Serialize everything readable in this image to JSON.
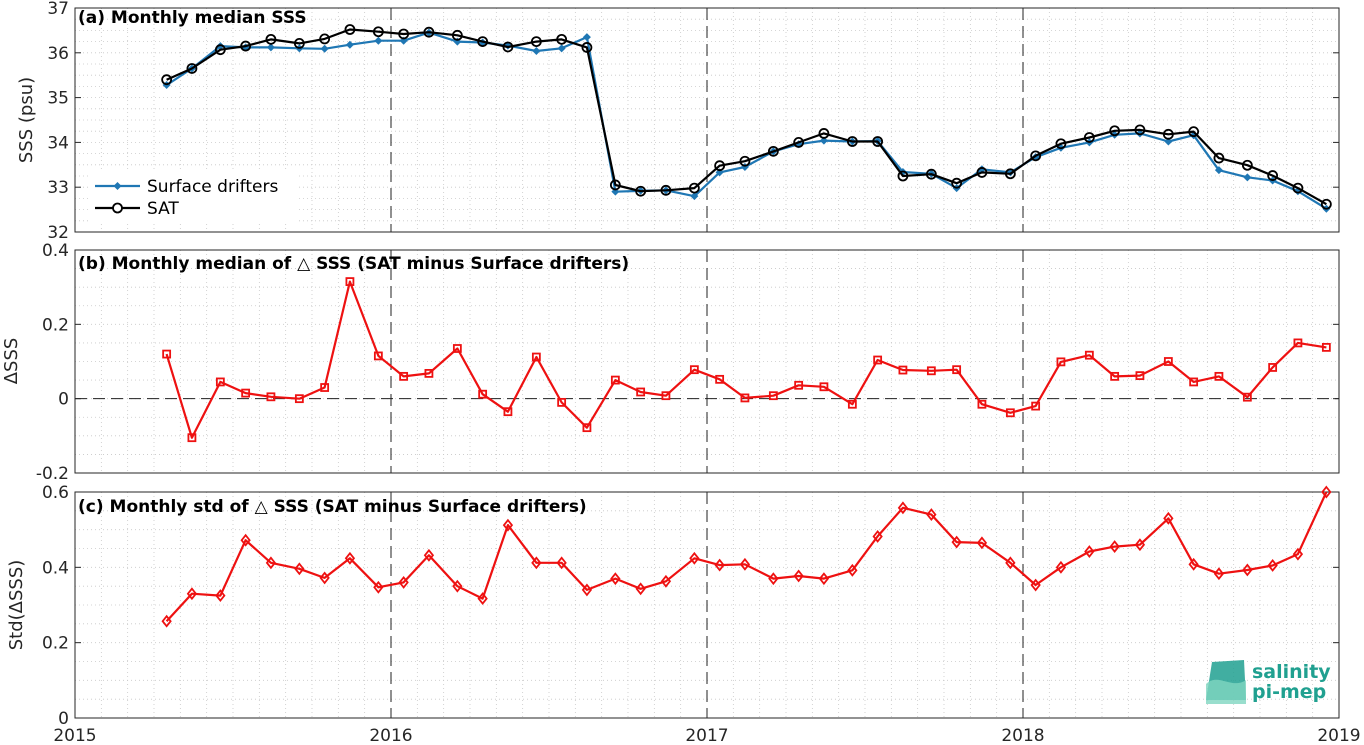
{
  "colors": {
    "drifters": "#1f77b4",
    "sat": "#000000",
    "delta": "#ee1111",
    "grid": "#c8c8c8",
    "logo": "#20a090"
  },
  "logo": {
    "line1": "salinity",
    "line2": "pi-mep"
  },
  "chart_data": [
    {
      "type": "line",
      "title": "(a) Monthly median SSS",
      "ylabel": "SSS (psu)",
      "ylim": [
        32,
        37
      ],
      "yticks": [
        "32",
        "33",
        "34",
        "35",
        "36",
        "37"
      ],
      "xticks": [
        "2015",
        "2016",
        "2017",
        "2018",
        "2019"
      ],
      "xlim": [
        2015.0,
        2019.0
      ],
      "grid": true,
      "legend_position": "bottom-left",
      "x": [
        2015.29,
        2015.37,
        2015.46,
        2015.54,
        2015.62,
        2015.71,
        2015.79,
        2015.87,
        2015.96,
        2016.04,
        2016.12,
        2016.21,
        2016.29,
        2016.37,
        2016.46,
        2016.54,
        2016.62,
        2016.71,
        2016.79,
        2016.87,
        2016.96,
        2017.04,
        2017.12,
        2017.21,
        2017.29,
        2017.37,
        2017.46,
        2017.54,
        2017.62,
        2017.71,
        2017.79,
        2017.87,
        2017.96,
        2018.04,
        2018.12,
        2018.21,
        2018.29,
        2018.37,
        2018.46,
        2018.54,
        2018.62,
        2018.71,
        2018.79,
        2018.87,
        2018.96
      ],
      "series": [
        {
          "name": "Surface drifters",
          "values": [
            35.28,
            35.65,
            36.15,
            36.12,
            36.12,
            36.1,
            36.09,
            36.18,
            36.27,
            36.27,
            36.45,
            36.25,
            36.23,
            36.16,
            36.04,
            36.1,
            36.35,
            32.9,
            32.92,
            32.93,
            32.8,
            33.33,
            33.45,
            33.8,
            33.96,
            34.04,
            34.02,
            34.03,
            33.34,
            33.3,
            32.98,
            33.4,
            33.33,
            33.67,
            33.88,
            34.0,
            34.17,
            34.2,
            34.02,
            34.16,
            33.38,
            33.22,
            33.15,
            32.91,
            32.52
          ]
        },
        {
          "name": "SAT",
          "values": [
            35.4,
            35.65,
            36.07,
            36.15,
            36.3,
            36.21,
            36.31,
            36.52,
            36.47,
            36.42,
            36.46,
            36.39,
            36.25,
            36.13,
            36.25,
            36.3,
            36.12,
            33.05,
            32.91,
            32.93,
            32.98,
            33.48,
            33.58,
            33.8,
            34.0,
            34.2,
            34.02,
            34.02,
            33.25,
            33.29,
            33.09,
            33.33,
            33.3,
            33.7,
            33.97,
            34.11,
            34.26,
            34.28,
            34.18,
            34.24,
            33.65,
            33.49,
            33.26,
            32.98,
            32.62
          ]
        }
      ]
    },
    {
      "type": "line",
      "title": "(b) Monthly median of △ SSS (SAT minus Surface drifters)",
      "ylabel": "ΔSSS",
      "ylim": [
        -0.2,
        0.4
      ],
      "yticks": [
        "-0.2",
        "0",
        "0.2",
        "0.4"
      ],
      "xticks": [
        "2015",
        "2016",
        "2017",
        "2018",
        "2019"
      ],
      "xlim": [
        2015.0,
        2019.0
      ],
      "grid": true,
      "marker": "square",
      "x": [
        2015.29,
        2015.37,
        2015.46,
        2015.54,
        2015.62,
        2015.71,
        2015.79,
        2015.87,
        2015.96,
        2016.04,
        2016.12,
        2016.21,
        2016.29,
        2016.37,
        2016.46,
        2016.54,
        2016.62,
        2016.71,
        2016.79,
        2016.87,
        2016.96,
        2017.04,
        2017.12,
        2017.21,
        2017.29,
        2017.37,
        2017.46,
        2017.54,
        2017.62,
        2017.71,
        2017.79,
        2017.87,
        2017.96,
        2018.04,
        2018.12,
        2018.21,
        2018.29,
        2018.37,
        2018.46,
        2018.54,
        2018.62,
        2018.71,
        2018.79,
        2018.87,
        2018.96
      ],
      "values": [
        0.12,
        -0.105,
        0.045,
        0.015,
        0.005,
        0.0,
        0.03,
        0.315,
        0.115,
        0.06,
        0.068,
        0.135,
        0.012,
        -0.035,
        0.112,
        -0.01,
        -0.078,
        0.05,
        0.018,
        0.008,
        0.078,
        0.052,
        0.002,
        0.008,
        0.036,
        0.032,
        -0.015,
        0.104,
        0.077,
        0.075,
        0.078,
        -0.015,
        -0.038,
        -0.02,
        0.099,
        0.117,
        0.06,
        0.062,
        0.1,
        0.045,
        0.06,
        0.004,
        0.084,
        0.15,
        0.138
      ]
    },
    {
      "type": "line",
      "title": "(c) Monthly std of △ SSS (SAT minus Surface drifters)",
      "ylabel": "Std(ΔSSS)",
      "ylim": [
        0,
        0.6
      ],
      "yticks": [
        "0",
        "0.2",
        "0.4",
        "0.6"
      ],
      "xticks": [
        "2015",
        "2016",
        "2017",
        "2018",
        "2019"
      ],
      "xlim": [
        2015.0,
        2019.0
      ],
      "grid": true,
      "marker": "diamond",
      "x": [
        2015.29,
        2015.37,
        2015.46,
        2015.54,
        2015.62,
        2015.71,
        2015.79,
        2015.87,
        2015.96,
        2016.04,
        2016.12,
        2016.21,
        2016.29,
        2016.37,
        2016.46,
        2016.54,
        2016.62,
        2016.71,
        2016.79,
        2016.87,
        2016.96,
        2017.04,
        2017.12,
        2017.21,
        2017.29,
        2017.37,
        2017.46,
        2017.54,
        2017.62,
        2017.71,
        2017.79,
        2017.87,
        2017.96,
        2018.04,
        2018.12,
        2018.21,
        2018.29,
        2018.37,
        2018.46,
        2018.54,
        2018.62,
        2018.71,
        2018.79,
        2018.87,
        2018.96
      ],
      "values": [
        0.257,
        0.33,
        0.325,
        0.472,
        0.412,
        0.396,
        0.372,
        0.424,
        0.347,
        0.36,
        0.432,
        0.35,
        0.317,
        0.512,
        0.412,
        0.412,
        0.34,
        0.37,
        0.343,
        0.363,
        0.424,
        0.406,
        0.408,
        0.37,
        0.377,
        0.37,
        0.392,
        0.482,
        0.558,
        0.54,
        0.467,
        0.465,
        0.412,
        0.353,
        0.4,
        0.442,
        0.455,
        0.46,
        0.53,
        0.408,
        0.383,
        0.393,
        0.405,
        0.435,
        0.6
      ]
    }
  ]
}
